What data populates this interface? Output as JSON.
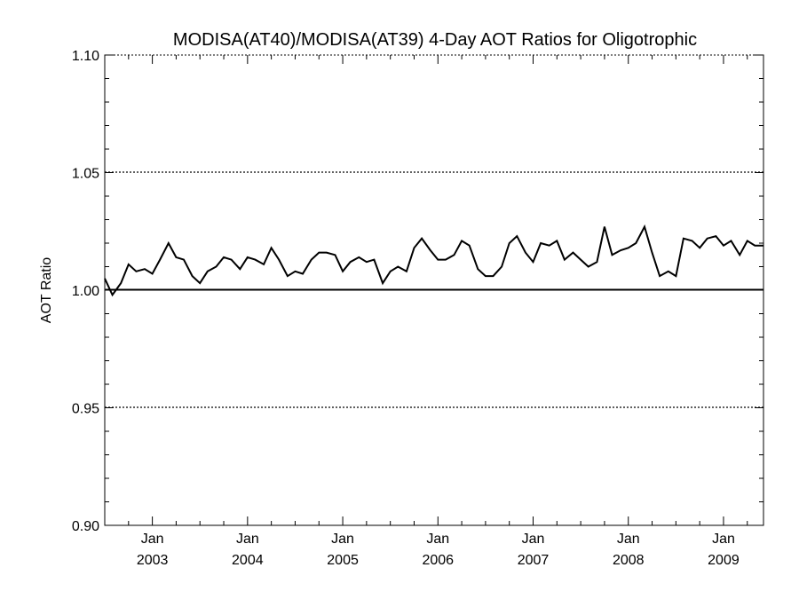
{
  "chart_data": {
    "type": "line",
    "title": "MODISA(AT40)/MODISA(AT39) 4-Day AOT Ratios for Oligotrophic",
    "xlabel": "",
    "ylabel": "AOT Ratio",
    "xlim": [
      2002.5,
      2009.42
    ],
    "ylim": [
      0.9,
      1.1
    ],
    "y_ticks": [
      {
        "value": 0.9,
        "label": "0.90"
      },
      {
        "value": 0.95,
        "label": "0.95"
      },
      {
        "value": 1.0,
        "label": "1.00"
      },
      {
        "value": 1.05,
        "label": "1.05"
      },
      {
        "value": 1.1,
        "label": "1.10"
      }
    ],
    "x_ticks": [
      {
        "value": 2003,
        "month": "Jan",
        "year": "2003"
      },
      {
        "value": 2004,
        "month": "Jan",
        "year": "2004"
      },
      {
        "value": 2005,
        "month": "Jan",
        "year": "2005"
      },
      {
        "value": 2006,
        "month": "Jan",
        "year": "2006"
      },
      {
        "value": 2007,
        "month": "Jan",
        "year": "2007"
      },
      {
        "value": 2008,
        "month": "Jan",
        "year": "2008"
      },
      {
        "value": 2009,
        "month": "Jan",
        "year": "2009"
      }
    ],
    "dotted_gridlines": [
      0.95,
      1.05
    ],
    "reference_line": 1.0,
    "series": [
      {
        "x": [
          2002.5,
          2002.58,
          2002.67,
          2002.75,
          2002.83,
          2002.92,
          2003.0,
          2003.08,
          2003.17,
          2003.25,
          2003.33,
          2003.42,
          2003.5,
          2003.58,
          2003.67,
          2003.75,
          2003.83,
          2003.92,
          2004.0,
          2004.08,
          2004.17,
          2004.25,
          2004.33,
          2004.42,
          2004.5,
          2004.58,
          2004.67,
          2004.75,
          2004.83,
          2004.92,
          2005.0,
          2005.08,
          2005.17,
          2005.25,
          2005.33,
          2005.42,
          2005.5,
          2005.58,
          2005.67,
          2005.75,
          2005.83,
          2005.92,
          2006.0,
          2006.08,
          2006.17,
          2006.25,
          2006.33,
          2006.42,
          2006.5,
          2006.58,
          2006.67,
          2006.75,
          2006.83,
          2006.92,
          2007.0,
          2007.08,
          2007.17,
          2007.25,
          2007.33,
          2007.42,
          2007.5,
          2007.58,
          2007.67,
          2007.75,
          2007.83,
          2007.92,
          2008.0,
          2008.08,
          2008.17,
          2008.25,
          2008.33,
          2008.42,
          2008.5,
          2008.58,
          2008.67,
          2008.75,
          2008.83,
          2008.92,
          2009.0,
          2009.08,
          2009.17,
          2009.25,
          2009.33,
          2009.42
        ],
        "y": [
          1.005,
          0.998,
          1.003,
          1.011,
          1.008,
          1.009,
          1.007,
          1.013,
          1.02,
          1.014,
          1.013,
          1.006,
          1.003,
          1.008,
          1.01,
          1.014,
          1.013,
          1.009,
          1.014,
          1.013,
          1.011,
          1.018,
          1.013,
          1.006,
          1.008,
          1.007,
          1.013,
          1.016,
          1.016,
          1.015,
          1.008,
          1.012,
          1.014,
          1.012,
          1.013,
          1.003,
          1.008,
          1.01,
          1.008,
          1.018,
          1.022,
          1.017,
          1.013,
          1.013,
          1.015,
          1.021,
          1.019,
          1.009,
          1.006,
          1.006,
          1.01,
          1.02,
          1.023,
          1.016,
          1.012,
          1.02,
          1.019,
          1.021,
          1.013,
          1.016,
          1.013,
          1.01,
          1.012,
          1.027,
          1.015,
          1.017,
          1.018,
          1.02,
          1.027,
          1.016,
          1.006,
          1.008,
          1.006,
          1.022,
          1.021,
          1.018,
          1.022,
          1.023,
          1.019,
          1.021,
          1.015,
          1.021,
          1.019,
          1.019
        ]
      }
    ]
  }
}
